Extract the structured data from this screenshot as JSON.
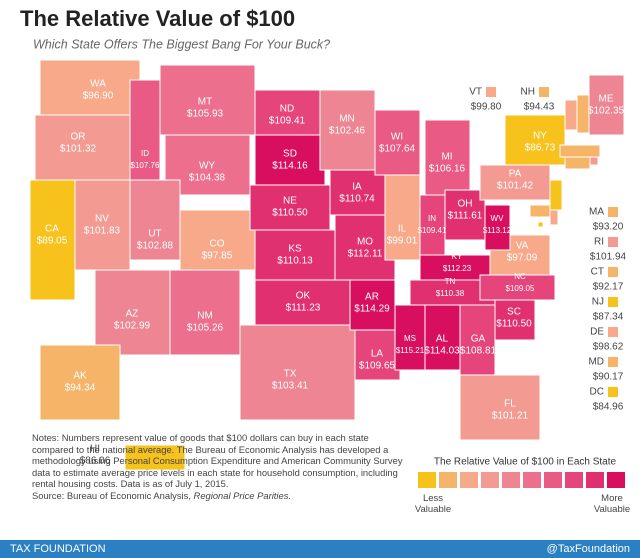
{
  "header": {
    "title": "The Relative Value of $100",
    "subtitle": "Which State Offers The Biggest Bang For Your Buck?"
  },
  "map": {
    "states": [
      {
        "abbr": "WA",
        "value": 96.9,
        "value_label": "$96.90",
        "color": "#f7a98a"
      },
      {
        "abbr": "OR",
        "value": 101.32,
        "value_label": "$101.32",
        "color": "#f39a92"
      },
      {
        "abbr": "CA",
        "value": 89.05,
        "value_label": "$89.05",
        "color": "#f6c21b"
      },
      {
        "abbr": "NV",
        "value": 101.83,
        "value_label": "$101.83",
        "color": "#f39a92"
      },
      {
        "abbr": "ID",
        "value": 107.76,
        "value_label": "$107.76",
        "color": "#e95a85"
      },
      {
        "abbr": "MT",
        "value": 105.93,
        "value_label": "$105.93",
        "color": "#ec6f8e"
      },
      {
        "abbr": "WY",
        "value": 104.38,
        "value_label": "$104.38",
        "color": "#ec6f8e"
      },
      {
        "abbr": "UT",
        "value": 102.88,
        "value_label": "$102.88",
        "color": "#ee8592"
      },
      {
        "abbr": "CO",
        "value": 97.85,
        "value_label": "$97.85",
        "color": "#f7a98a"
      },
      {
        "abbr": "AZ",
        "value": 102.99,
        "value_label": "$102.99",
        "color": "#ee8592"
      },
      {
        "abbr": "NM",
        "value": 105.26,
        "value_label": "$105.26",
        "color": "#ec6f8e"
      },
      {
        "abbr": "ND",
        "value": 109.41,
        "value_label": "$109.41",
        "color": "#e6457c"
      },
      {
        "abbr": "SD",
        "value": 114.16,
        "value_label": "$114.16",
        "color": "#d80f5f"
      },
      {
        "abbr": "NE",
        "value": 110.5,
        "value_label": "$110.50",
        "color": "#e0306f"
      },
      {
        "abbr": "KS",
        "value": 110.13,
        "value_label": "$110.13",
        "color": "#e0306f"
      },
      {
        "abbr": "OK",
        "value": 111.23,
        "value_label": "$111.23",
        "color": "#e0306f"
      },
      {
        "abbr": "TX",
        "value": 103.41,
        "value_label": "$103.41",
        "color": "#ee8592"
      },
      {
        "abbr": "MN",
        "value": 102.46,
        "value_label": "$102.46",
        "color": "#ee8592"
      },
      {
        "abbr": "IA",
        "value": 110.74,
        "value_label": "$110.74",
        "color": "#e0306f"
      },
      {
        "abbr": "MO",
        "value": 112.11,
        "value_label": "$112.11",
        "color": "#e0306f"
      },
      {
        "abbr": "AR",
        "value": 114.29,
        "value_label": "$114.29",
        "color": "#d80f5f"
      },
      {
        "abbr": "LA",
        "value": 109.65,
        "value_label": "$109.65",
        "color": "#e6457c"
      },
      {
        "abbr": "WI",
        "value": 107.64,
        "value_label": "$107.64",
        "color": "#e95a85"
      },
      {
        "abbr": "IL",
        "value": 99.01,
        "value_label": "$99.01",
        "color": "#f7a98a"
      },
      {
        "abbr": "MI",
        "value": 106.16,
        "value_label": "$106.16",
        "color": "#e95a85"
      },
      {
        "abbr": "IN",
        "value": 109.41,
        "value_label": "$109.41",
        "color": "#e6457c"
      },
      {
        "abbr": "OH",
        "value": 111.61,
        "value_label": "$111.61",
        "color": "#e0306f"
      },
      {
        "abbr": "KY",
        "value": 112.23,
        "value_label": "$112.23",
        "color": "#d80f5f"
      },
      {
        "abbr": "TN",
        "value": 110.38,
        "value_label": "$110.38",
        "color": "#e0306f"
      },
      {
        "abbr": "MS",
        "value": 115.21,
        "value_label": "$115.21",
        "color": "#d80f5f"
      },
      {
        "abbr": "AL",
        "value": 114.03,
        "value_label": "$114.03",
        "color": "#d80f5f"
      },
      {
        "abbr": "GA",
        "value": 108.81,
        "value_label": "$108.81",
        "color": "#e6457c"
      },
      {
        "abbr": "FL",
        "value": 101.21,
        "value_label": "$101.21",
        "color": "#f39a92"
      },
      {
        "abbr": "SC",
        "value": 110.5,
        "value_label": "$110.50",
        "color": "#e0306f"
      },
      {
        "abbr": "NC",
        "value": 109.05,
        "value_label": "$109.05",
        "color": "#e6457c"
      },
      {
        "abbr": "VA",
        "value": 97.09,
        "value_label": "$97.09",
        "color": "#f7a98a"
      },
      {
        "abbr": "WV",
        "value": 113.12,
        "value_label": "$113.12",
        "color": "#d80f5f"
      },
      {
        "abbr": "PA",
        "value": 101.42,
        "value_label": "$101.42",
        "color": "#f39a92"
      },
      {
        "abbr": "NY",
        "value": 86.73,
        "value_label": "$86.73",
        "color": "#f6c21b"
      },
      {
        "abbr": "ME",
        "value": 102.35,
        "value_label": "$102.35",
        "color": "#ee8592"
      },
      {
        "abbr": "VT",
        "value": 99.8,
        "value_label": "$99.80",
        "color": "#f7a98a"
      },
      {
        "abbr": "NH",
        "value": 94.43,
        "value_label": "$94.43",
        "color": "#f6b468"
      },
      {
        "abbr": "MA",
        "value": 93.2,
        "value_label": "$93.20",
        "color": "#f6b468"
      },
      {
        "abbr": "RI",
        "value": 101.94,
        "value_label": "$101.94",
        "color": "#f39a92"
      },
      {
        "abbr": "CT",
        "value": 92.17,
        "value_label": "$92.17",
        "color": "#f6b468"
      },
      {
        "abbr": "NJ",
        "value": 87.34,
        "value_label": "$87.34",
        "color": "#f6c21b"
      },
      {
        "abbr": "DE",
        "value": 98.62,
        "value_label": "$98.62",
        "color": "#f7a98a"
      },
      {
        "abbr": "MD",
        "value": 90.17,
        "value_label": "$90.17",
        "color": "#f6b468"
      },
      {
        "abbr": "DC",
        "value": 84.96,
        "value_label": "$84.96",
        "color": "#f6c21b"
      },
      {
        "abbr": "AK",
        "value": 94.34,
        "value_label": "$94.34",
        "color": "#f6b468"
      },
      {
        "abbr": "HI",
        "value": 86.06,
        "value_label": "$86.06",
        "color": "#f6c21b"
      }
    ]
  },
  "legend": {
    "title": "The Relative Value of $100 in Each State",
    "colors": [
      "#f6c21b",
      "#f6b468",
      "#f7a98a",
      "#f39a92",
      "#ee8592",
      "#ec6f8e",
      "#e95a85",
      "#e6457c",
      "#e0306f",
      "#d80f5f"
    ],
    "low_label": "Less Valuable",
    "high_label": "More Valuable"
  },
  "notes": {
    "text": "Notes: Numbers represent value of goods that $100 dollars can buy in each state compared to the national average. The Bureau of Economic Analysis has developed a methodology using Personal Consumption Expenditure and American Community Survey data to estimate average price levels in each state for household consumption, including rental housing costs. Data is as of July 1, 2015.",
    "source_prefix": "Source: Bureau of Economic Analysis, ",
    "source_italic": "Regional Price Parities."
  },
  "footer": {
    "left": "TAX FOUNDATION",
    "right": "@TaxFoundation"
  }
}
